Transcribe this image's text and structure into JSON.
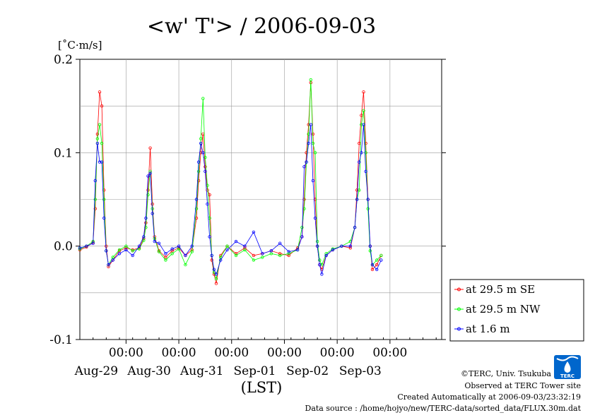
{
  "chart_data": {
    "type": "line",
    "title": "<w' T'> / 2006-09-03",
    "ylabel": "[˚C·m/s]",
    "xlabel": "(LST)",
    "ylim": [
      -0.1,
      0.2
    ],
    "yticks": [
      {
        "value": 0.2,
        "label": "0.2"
      },
      {
        "value": 0.1,
        "label": "0.1"
      },
      {
        "value": 0.0,
        "label": "0.0"
      },
      {
        "value": -0.1,
        "label": "-0.1"
      }
    ],
    "xlim": [
      "2006-08-28 03:00",
      "2006-09-03 23:30"
    ],
    "xticks": [
      {
        "time": "2006-08-29 00:00",
        "label": "00:00",
        "date": "Aug-29"
      },
      {
        "time": "2006-08-30 00:00",
        "label": "00:00",
        "date": "Aug-30"
      },
      {
        "time": "2006-08-31 00:00",
        "label": "00:00",
        "date": "Aug-31"
      },
      {
        "time": "2006-09-01 00:00",
        "label": "00:00",
        "date": "Sep-01"
      },
      {
        "time": "2006-09-02 00:00",
        "label": "00:00",
        "date": "Sep-02"
      },
      {
        "time": "2006-09-03 00:00",
        "label": "00:00",
        "date": "Sep-03"
      }
    ],
    "grid": true,
    "legend_position": "right",
    "series": [
      {
        "name": "at 29.5 m SE",
        "color": "#ff0000",
        "points": [
          [
            "2006-08-28 03:00",
            -0.004
          ],
          [
            "2006-08-28 06:00",
            -0.001
          ],
          [
            "2006-08-28 09:00",
            0.004
          ],
          [
            "2006-08-28 10:00",
            0.04
          ],
          [
            "2006-08-28 11:00",
            0.12
          ],
          [
            "2006-08-28 12:00",
            0.165
          ],
          [
            "2006-08-28 13:00",
            0.15
          ],
          [
            "2006-08-28 14:00",
            0.06
          ],
          [
            "2006-08-28 15:00",
            0.0
          ],
          [
            "2006-08-28 16:00",
            -0.022
          ],
          [
            "2006-08-28 18:00",
            -0.015
          ],
          [
            "2006-08-28 21:00",
            -0.005
          ],
          [
            "2006-08-29 00:00",
            -0.002
          ],
          [
            "2006-08-29 03:00",
            -0.004
          ],
          [
            "2006-08-29 06:00",
            -0.002
          ],
          [
            "2006-08-29 08:00",
            0.008
          ],
          [
            "2006-08-29 09:00",
            0.025
          ],
          [
            "2006-08-29 10:00",
            0.06
          ],
          [
            "2006-08-29 11:00",
            0.105
          ],
          [
            "2006-08-29 12:00",
            0.045
          ],
          [
            "2006-08-29 13:00",
            0.01
          ],
          [
            "2006-08-29 15:00",
            -0.005
          ],
          [
            "2006-08-29 18:00",
            -0.012
          ],
          [
            "2006-08-29 21:00",
            -0.005
          ],
          [
            "2006-08-30 00:00",
            -0.002
          ],
          [
            "2006-08-30 03:00",
            -0.01
          ],
          [
            "2006-08-30 06:00",
            -0.004
          ],
          [
            "2006-08-30 08:00",
            0.03
          ],
          [
            "2006-08-30 09:00",
            0.07
          ],
          [
            "2006-08-30 10:00",
            0.1
          ],
          [
            "2006-08-30 11:00",
            0.12
          ],
          [
            "2006-08-30 12:00",
            0.085
          ],
          [
            "2006-08-30 13:00",
            0.06
          ],
          [
            "2006-08-30 14:00",
            0.055
          ],
          [
            "2006-08-30 15:00",
            -0.015
          ],
          [
            "2006-08-30 16:00",
            -0.03
          ],
          [
            "2006-08-30 17:00",
            -0.04
          ],
          [
            "2006-08-30 19:00",
            -0.01
          ],
          [
            "2006-08-30 22:00",
            0.0
          ],
          [
            "2006-08-31 02:00",
            -0.008
          ],
          [
            "2006-08-31 06:00",
            -0.002
          ],
          [
            "2006-08-31 10:00",
            -0.01
          ],
          [
            "2006-08-31 14:00",
            -0.008
          ],
          [
            "2006-08-31 18:00",
            -0.005
          ],
          [
            "2006-08-31 22:00",
            -0.008
          ],
          [
            "2006-09-01 02:00",
            -0.01
          ],
          [
            "2006-09-01 06:00",
            -0.002
          ],
          [
            "2006-09-01 08:00",
            0.01
          ],
          [
            "2006-09-01 09:00",
            0.05
          ],
          [
            "2006-09-01 10:00",
            0.1
          ],
          [
            "2006-09-01 11:00",
            0.13
          ],
          [
            "2006-09-01 12:00",
            0.175
          ],
          [
            "2006-09-01 13:00",
            0.12
          ],
          [
            "2006-09-01 14:00",
            0.05
          ],
          [
            "2006-09-01 15:00",
            0.0
          ],
          [
            "2006-09-01 16:00",
            -0.02
          ],
          [
            "2006-09-01 17:00",
            -0.025
          ],
          [
            "2006-09-01 19:00",
            -0.01
          ],
          [
            "2006-09-01 22:00",
            -0.004
          ],
          [
            "2006-09-02 02:00",
            0.0
          ],
          [
            "2006-09-02 06:00",
            -0.002
          ],
          [
            "2006-09-02 08:00",
            0.02
          ],
          [
            "2006-09-02 09:00",
            0.06
          ],
          [
            "2006-09-02 10:00",
            0.11
          ],
          [
            "2006-09-02 11:00",
            0.14
          ],
          [
            "2006-09-02 12:00",
            0.165
          ],
          [
            "2006-09-02 13:00",
            0.11
          ],
          [
            "2006-09-02 14:00",
            0.05
          ],
          [
            "2006-09-02 15:00",
            0.0
          ],
          [
            "2006-09-02 16:00",
            -0.025
          ],
          [
            "2006-09-02 18:00",
            -0.02
          ],
          [
            "2006-09-02 20:00",
            -0.01
          ]
        ]
      },
      {
        "name": "at 29.5 m NW",
        "color": "#00ff00",
        "points": [
          [
            "2006-08-28 03:00",
            -0.003
          ],
          [
            "2006-08-28 06:00",
            0.0
          ],
          [
            "2006-08-28 09:00",
            0.005
          ],
          [
            "2006-08-28 10:00",
            0.05
          ],
          [
            "2006-08-28 11:00",
            0.115
          ],
          [
            "2006-08-28 12:00",
            0.13
          ],
          [
            "2006-08-28 13:00",
            0.11
          ],
          [
            "2006-08-28 14:00",
            0.05
          ],
          [
            "2006-08-28 15:00",
            -0.005
          ],
          [
            "2006-08-28 16:00",
            -0.02
          ],
          [
            "2006-08-28 18:00",
            -0.012
          ],
          [
            "2006-08-28 21:00",
            -0.004
          ],
          [
            "2006-08-29 00:00",
            0.0
          ],
          [
            "2006-08-29 03:00",
            -0.005
          ],
          [
            "2006-08-29 06:00",
            -0.003
          ],
          [
            "2006-08-29 08:00",
            0.006
          ],
          [
            "2006-08-29 09:00",
            0.02
          ],
          [
            "2006-08-29 10:00",
            0.055
          ],
          [
            "2006-08-29 11:00",
            0.08
          ],
          [
            "2006-08-29 12:00",
            0.04
          ],
          [
            "2006-08-29 13:00",
            0.008
          ],
          [
            "2006-08-29 15:00",
            -0.006
          ],
          [
            "2006-08-29 18:00",
            -0.015
          ],
          [
            "2006-08-29 21:00",
            -0.008
          ],
          [
            "2006-08-30 00:00",
            -0.003
          ],
          [
            "2006-08-30 03:00",
            -0.02
          ],
          [
            "2006-08-30 06:00",
            -0.006
          ],
          [
            "2006-08-30 08:00",
            0.04
          ],
          [
            "2006-08-30 09:00",
            0.08
          ],
          [
            "2006-08-30 10:00",
            0.115
          ],
          [
            "2006-08-30 11:00",
            0.158
          ],
          [
            "2006-08-30 12:00",
            0.095
          ],
          [
            "2006-08-30 13:00",
            0.065
          ],
          [
            "2006-08-30 14:00",
            0.03
          ],
          [
            "2006-08-30 15:00",
            -0.01
          ],
          [
            "2006-08-30 16:00",
            -0.028
          ],
          [
            "2006-08-30 17:00",
            -0.035
          ],
          [
            "2006-08-30 19:00",
            -0.012
          ],
          [
            "2006-08-30 22:00",
            0.0
          ],
          [
            "2006-08-31 02:00",
            -0.01
          ],
          [
            "2006-08-31 06:00",
            -0.004
          ],
          [
            "2006-08-31 10:00",
            -0.015
          ],
          [
            "2006-08-31 14:00",
            -0.012
          ],
          [
            "2006-08-31 18:00",
            -0.008
          ],
          [
            "2006-08-31 22:00",
            -0.01
          ],
          [
            "2006-09-01 02:00",
            -0.008
          ],
          [
            "2006-09-01 06:00",
            -0.004
          ],
          [
            "2006-09-01 08:00",
            0.02
          ],
          [
            "2006-09-01 09:00",
            0.04
          ],
          [
            "2006-09-01 10:00",
            0.09
          ],
          [
            "2006-09-01 11:00",
            0.12
          ],
          [
            "2006-09-01 12:00",
            0.178
          ],
          [
            "2006-09-01 13:00",
            0.11
          ],
          [
            "2006-09-01 14:00",
            0.1
          ],
          [
            "2006-09-01 15:00",
            0.005
          ],
          [
            "2006-09-01 16:00",
            -0.015
          ],
          [
            "2006-09-01 17:00",
            -0.02
          ],
          [
            "2006-09-01 19:00",
            -0.008
          ],
          [
            "2006-09-01 22:00",
            -0.003
          ],
          [
            "2006-09-02 02:00",
            0.0
          ],
          [
            "2006-09-02 06:00",
            0.005
          ],
          [
            "2006-09-02 08:00",
            0.02
          ],
          [
            "2006-09-02 09:00",
            0.05
          ],
          [
            "2006-09-02 10:00",
            0.06
          ],
          [
            "2006-09-02 11:00",
            0.13
          ],
          [
            "2006-09-02 12:00",
            0.145
          ],
          [
            "2006-09-02 13:00",
            0.1
          ],
          [
            "2006-09-02 14:00",
            0.04
          ],
          [
            "2006-09-02 15:00",
            -0.005
          ],
          [
            "2006-09-02 16:00",
            -0.02
          ],
          [
            "2006-09-02 18:00",
            -0.015
          ],
          [
            "2006-09-02 20:00",
            -0.01
          ]
        ]
      },
      {
        "name": "at 1.6 m",
        "color": "#0000ff",
        "points": [
          [
            "2006-08-28 03:00",
            -0.002
          ],
          [
            "2006-08-28 06:00",
            0.0
          ],
          [
            "2006-08-28 09:00",
            0.003
          ],
          [
            "2006-08-28 10:00",
            0.07
          ],
          [
            "2006-08-28 11:00",
            0.11
          ],
          [
            "2006-08-28 12:00",
            0.09
          ],
          [
            "2006-08-28 13:00",
            0.09
          ],
          [
            "2006-08-28 14:00",
            0.03
          ],
          [
            "2006-08-28 15:00",
            -0.005
          ],
          [
            "2006-08-28 16:00",
            -0.02
          ],
          [
            "2006-08-28 18:00",
            -0.015
          ],
          [
            "2006-08-28 21:00",
            -0.008
          ],
          [
            "2006-08-29 00:00",
            -0.004
          ],
          [
            "2006-08-29 03:00",
            -0.01
          ],
          [
            "2006-08-29 06:00",
            0.0
          ],
          [
            "2006-08-29 08:00",
            0.01
          ],
          [
            "2006-08-29 09:00",
            0.03
          ],
          [
            "2006-08-29 10:00",
            0.075
          ],
          [
            "2006-08-29 11:00",
            0.078
          ],
          [
            "2006-08-29 12:00",
            0.035
          ],
          [
            "2006-08-29 13:00",
            0.005
          ],
          [
            "2006-08-29 15:00",
            0.003
          ],
          [
            "2006-08-29 18:00",
            -0.008
          ],
          [
            "2006-08-29 21:00",
            -0.003
          ],
          [
            "2006-08-30 00:00",
            0.0
          ],
          [
            "2006-08-30 03:00",
            -0.01
          ],
          [
            "2006-08-30 06:00",
            0.0
          ],
          [
            "2006-08-30 08:00",
            0.05
          ],
          [
            "2006-08-30 09:00",
            0.09
          ],
          [
            "2006-08-30 10:00",
            0.11
          ],
          [
            "2006-08-30 11:00",
            0.1
          ],
          [
            "2006-08-30 12:00",
            0.08
          ],
          [
            "2006-08-30 13:00",
            0.045
          ],
          [
            "2006-08-30 14:00",
            0.01
          ],
          [
            "2006-08-30 15:00",
            -0.01
          ],
          [
            "2006-08-30 16:00",
            -0.025
          ],
          [
            "2006-08-30 17:00",
            -0.03
          ],
          [
            "2006-08-30 19:00",
            -0.015
          ],
          [
            "2006-08-30 22:00",
            -0.004
          ],
          [
            "2006-08-31 02:00",
            0.005
          ],
          [
            "2006-08-31 06:00",
            0.0
          ],
          [
            "2006-08-31 10:00",
            0.015
          ],
          [
            "2006-08-31 14:00",
            -0.008
          ],
          [
            "2006-08-31 18:00",
            -0.005
          ],
          [
            "2006-08-31 22:00",
            0.003
          ],
          [
            "2006-09-01 02:00",
            -0.006
          ],
          [
            "2006-09-01 06:00",
            -0.004
          ],
          [
            "2006-09-01 08:00",
            0.01
          ],
          [
            "2006-09-01 09:00",
            0.085
          ],
          [
            "2006-09-01 10:00",
            0.09
          ],
          [
            "2006-09-01 11:00",
            0.11
          ],
          [
            "2006-09-01 12:00",
            0.13
          ],
          [
            "2006-09-01 13:00",
            0.07
          ],
          [
            "2006-09-01 14:00",
            0.03
          ],
          [
            "2006-09-01 15:00",
            0.0
          ],
          [
            "2006-09-01 16:00",
            -0.02
          ],
          [
            "2006-09-01 17:00",
            -0.03
          ],
          [
            "2006-09-01 19:00",
            -0.01
          ],
          [
            "2006-09-01 22:00",
            -0.004
          ],
          [
            "2006-09-02 02:00",
            0.0
          ],
          [
            "2006-09-02 06:00",
            0.0
          ],
          [
            "2006-09-02 08:00",
            0.02
          ],
          [
            "2006-09-02 09:00",
            0.05
          ],
          [
            "2006-09-02 10:00",
            0.09
          ],
          [
            "2006-09-02 11:00",
            0.1
          ],
          [
            "2006-09-02 12:00",
            0.13
          ],
          [
            "2006-09-02 13:00",
            0.08
          ],
          [
            "2006-09-02 14:00",
            0.05
          ],
          [
            "2006-09-02 15:00",
            0.0
          ],
          [
            "2006-09-02 16:00",
            -0.02
          ],
          [
            "2006-09-02 18:00",
            -0.025
          ],
          [
            "2006-09-02 20:00",
            -0.015
          ]
        ]
      }
    ]
  },
  "footer": {
    "copyright": "©TERC, Univ. Tsukuba",
    "observed": "Observed at TERC Tower site",
    "created": "Created Automatically at 2006-09-03/23:32:19",
    "source": "Data source : /home/hojyo/new/TERC-data/sorted_data/FLUX.30m.dat"
  },
  "logo": {
    "text": "TERC",
    "color": "#0066cc"
  }
}
